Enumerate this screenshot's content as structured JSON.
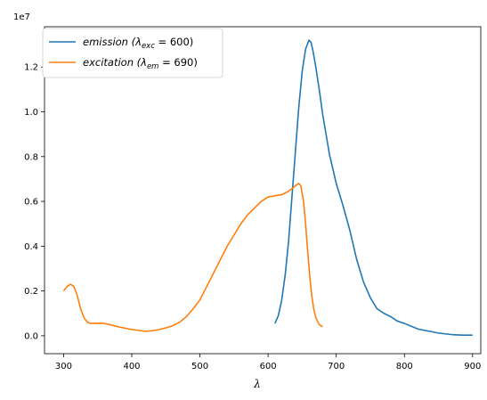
{
  "chart_data": {
    "type": "line",
    "xlabel": "λ",
    "ylabel": "",
    "offset_text": "1e7",
    "xlim": [
      272,
      912
    ],
    "ylim": [
      -800000,
      13800000
    ],
    "xticks": [
      300,
      400,
      500,
      600,
      700,
      800,
      900
    ],
    "yticks": [
      0,
      2000000,
      4000000,
      6000000,
      8000000,
      10000000,
      12000000
    ],
    "ytick_labels": [
      "0.0",
      "0.2",
      "0.4",
      "0.6",
      "0.8",
      "1.0",
      "1.2"
    ],
    "grid": false,
    "legend_position": "top-left",
    "series": [
      {
        "name": "emission (λexc = 600)",
        "label_main": "emission (",
        "label_sym": "λ",
        "label_sub": "exc",
        "label_rest": " = 600)",
        "color": "#1f77b4",
        "x": [
          610,
          615,
          620,
          625,
          630,
          635,
          640,
          645,
          650,
          655,
          660,
          663,
          666,
          670,
          675,
          680,
          690,
          700,
          710,
          720,
          730,
          740,
          750,
          760,
          770,
          780,
          790,
          800,
          820,
          850,
          870,
          885,
          900
        ],
        "y": [
          550000,
          900000,
          1600000,
          2700000,
          4200000,
          6200000,
          8200000,
          10200000,
          11800000,
          12800000,
          13200000,
          13100000,
          12700000,
          12000000,
          11000000,
          9900000,
          8100000,
          6800000,
          5800000,
          4700000,
          3400000,
          2400000,
          1700000,
          1200000,
          1000000,
          850000,
          650000,
          550000,
          300000,
          120000,
          50000,
          30000,
          30000
        ]
      },
      {
        "name": "excitation (λem = 690)",
        "label_main": "excitation (",
        "label_sym": "λ",
        "label_sub": "em",
        "label_rest": " = 690)",
        "color": "#ff7f0e",
        "x": [
          300,
          305,
          310,
          315,
          320,
          325,
          330,
          335,
          340,
          350,
          360,
          370,
          380,
          400,
          420,
          430,
          440,
          450,
          460,
          470,
          480,
          490,
          500,
          510,
          520,
          530,
          540,
          550,
          560,
          570,
          580,
          590,
          600,
          610,
          620,
          630,
          640,
          645,
          648,
          652,
          655,
          658,
          661,
          664,
          667,
          670,
          675,
          680
        ],
        "y": [
          2000000,
          2200000,
          2300000,
          2200000,
          1800000,
          1200000,
          800000,
          600000,
          550000,
          560000,
          550000,
          480000,
          400000,
          280000,
          200000,
          220000,
          280000,
          350000,
          450000,
          600000,
          850000,
          1200000,
          1600000,
          2200000,
          2800000,
          3400000,
          4000000,
          4500000,
          5000000,
          5400000,
          5700000,
          6000000,
          6200000,
          6250000,
          6300000,
          6450000,
          6700000,
          6800000,
          6700000,
          6000000,
          5000000,
          3800000,
          2700000,
          1800000,
          1200000,
          800000,
          500000,
          400000
        ]
      }
    ]
  }
}
